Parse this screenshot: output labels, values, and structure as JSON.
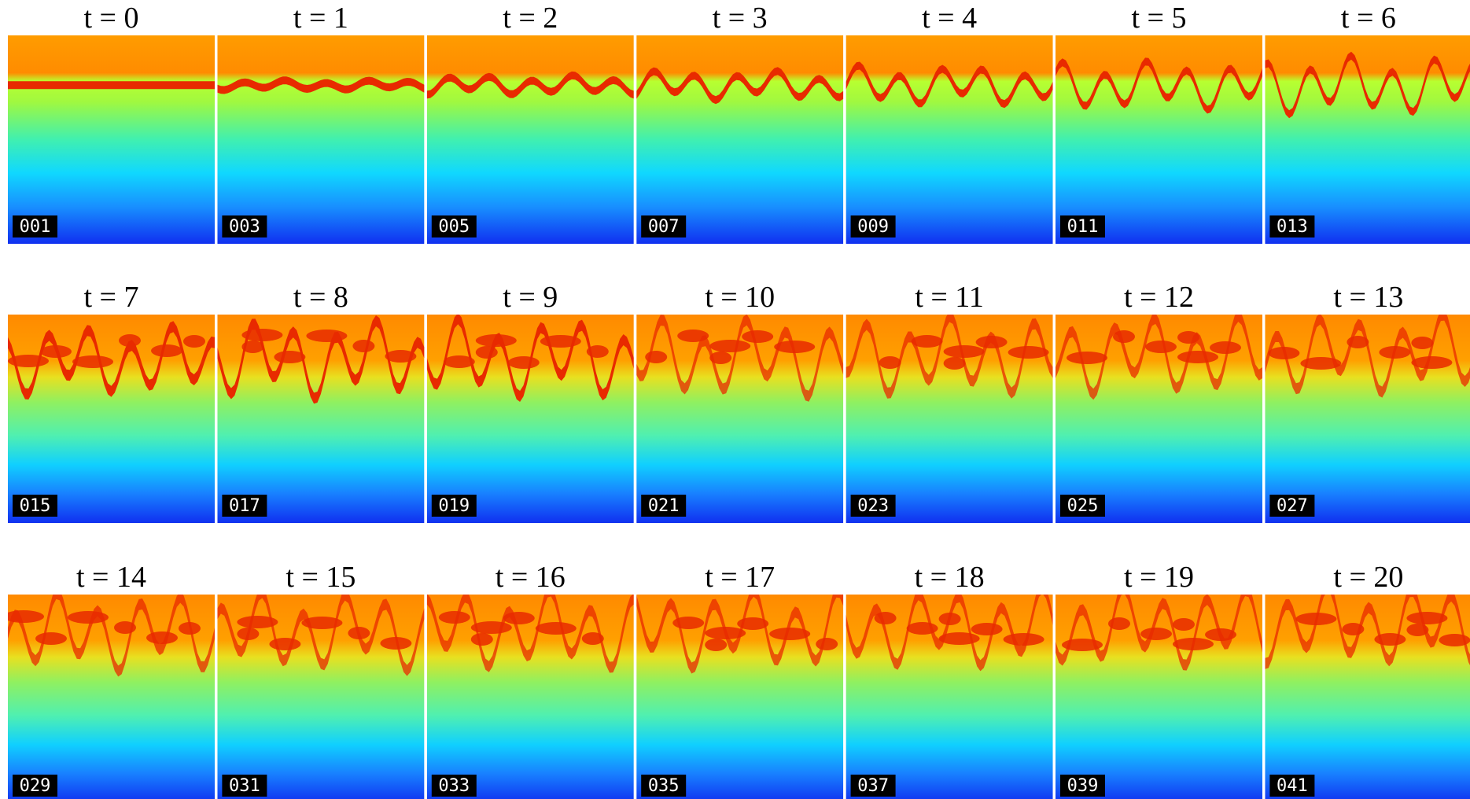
{
  "panels": [
    {
      "title": "t = 0",
      "frame": "001"
    },
    {
      "title": "t = 1",
      "frame": "003"
    },
    {
      "title": "t = 2",
      "frame": "005"
    },
    {
      "title": "t = 3",
      "frame": "007"
    },
    {
      "title": "t = 4",
      "frame": "009"
    },
    {
      "title": "t = 5",
      "frame": "011"
    },
    {
      "title": "t = 6",
      "frame": "013"
    },
    {
      "title": "t = 7",
      "frame": "015"
    },
    {
      "title": "t = 8",
      "frame": "017"
    },
    {
      "title": "t = 9",
      "frame": "019"
    },
    {
      "title": "t = 10",
      "frame": "021"
    },
    {
      "title": "t = 11",
      "frame": "023"
    },
    {
      "title": "t = 12",
      "frame": "025"
    },
    {
      "title": "t = 13",
      "frame": "027"
    },
    {
      "title": "t = 14",
      "frame": "029"
    },
    {
      "title": "t = 15",
      "frame": "031"
    },
    {
      "title": "t = 16",
      "frame": "033"
    },
    {
      "title": "t = 17",
      "frame": "035"
    },
    {
      "title": "t = 18",
      "frame": "037"
    },
    {
      "title": "t = 19",
      "frame": "039"
    },
    {
      "title": "t = 20",
      "frame": "041"
    }
  ]
}
